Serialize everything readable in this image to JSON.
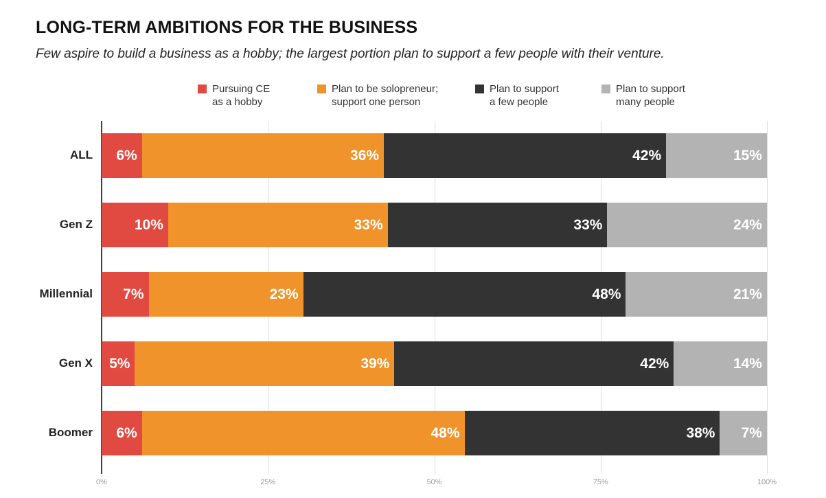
{
  "title": "LONG-TERM AMBITIONS FOR THE BUSINESS",
  "subtitle": "Few aspire to build a business as a hobby; the largest portion plan to support a few people with their venture.",
  "chart_data": {
    "type": "bar",
    "orientation": "horizontal-stacked-100",
    "categories": [
      "ALL",
      "Gen Z",
      "Millennial",
      "Gen X",
      "Boomer"
    ],
    "series": [
      {
        "name": "Pursuing CE\nas a hobby",
        "color": "#e04a41",
        "values": [
          6,
          10,
          7,
          5,
          6
        ]
      },
      {
        "name": "Plan to be solopreneur;\nsupport one person",
        "color": "#f0932b",
        "values": [
          36,
          33,
          23,
          39,
          48
        ]
      },
      {
        "name": "Plan to support\na few people",
        "color": "#333333",
        "values": [
          42,
          33,
          48,
          42,
          38
        ]
      },
      {
        "name": "Plan to support\nmany people",
        "color": "#b3b3b4",
        "values": [
          15,
          24,
          21,
          14,
          7
        ]
      }
    ],
    "value_suffix": "%",
    "xlim": [
      0,
      100
    ],
    "xticks": [
      "0%",
      "25%",
      "50%",
      "75%",
      "100%"
    ],
    "grid": true,
    "legend": "top"
  }
}
